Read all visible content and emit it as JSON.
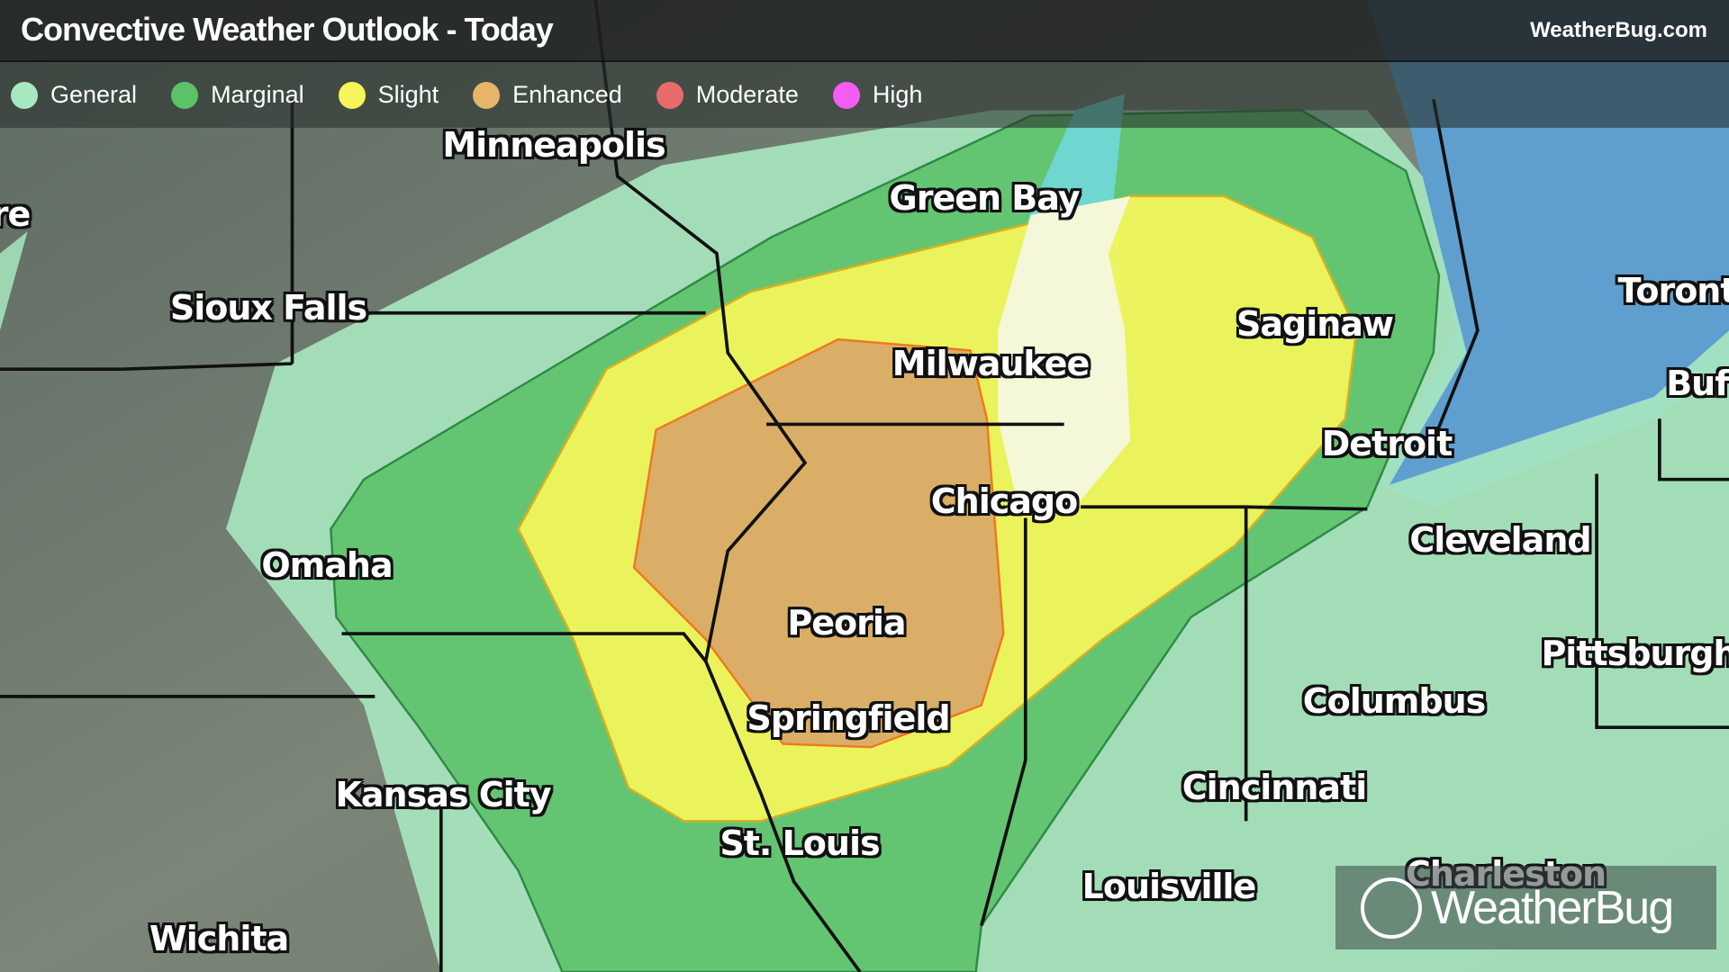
{
  "header": {
    "title": "Convective Weather Outlook - Today",
    "site": "WeatherBug.com"
  },
  "legend": [
    {
      "label": "General",
      "color": "#a8e8c0"
    },
    {
      "label": "Marginal",
      "color": "#5cc26a"
    },
    {
      "label": "Slight",
      "color": "#f6f65a"
    },
    {
      "label": "Enhanced",
      "color": "#e6b56a"
    },
    {
      "label": "Moderate",
      "color": "#e86a6a"
    },
    {
      "label": "High",
      "color": "#f45cf4"
    }
  ],
  "cities": [
    "Minneapolis",
    "Green Bay",
    "Sioux Falls",
    "Milwaukee",
    "Saginaw",
    "Detroit",
    "Chicago",
    "Cleveland",
    "Omaha",
    "Peoria",
    "Springfield",
    "Columbus",
    "Pittsburgh",
    "Kansas City",
    "Cincinnati",
    "St. Louis",
    "Louisville",
    "Charleston",
    "Wichita",
    "Toront",
    "Buf",
    "re"
  ],
  "logo": {
    "text": "WeatherBug"
  }
}
